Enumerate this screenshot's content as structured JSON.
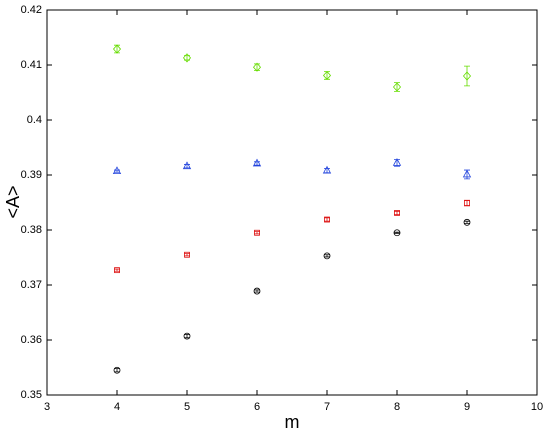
{
  "chart_data": {
    "type": "scatter",
    "x_label": "m",
    "y_label": "<A>",
    "x": [
      4,
      5,
      6,
      7,
      8,
      9
    ],
    "series": [
      {
        "color": "#66dd00",
        "marker": "diamond",
        "values": [
          0.4129,
          0.4113,
          0.4096,
          0.4081,
          0.406,
          0.408
        ],
        "errors": [
          0.0007,
          0.0004,
          0.0006,
          0.0007,
          0.0008,
          0.0018
        ]
      },
      {
        "color": "#2244dd",
        "marker": "triangle",
        "values": [
          0.3907,
          0.3916,
          0.3921,
          0.3908,
          0.3922,
          0.3901
        ],
        "errors": [
          0.0002,
          0.0003,
          0.0003,
          0.0004,
          0.0006,
          0.0008
        ]
      },
      {
        "color": "#dd1111",
        "marker": "square",
        "values": [
          0.3727,
          0.3755,
          0.3795,
          0.3819,
          0.3831,
          0.3849
        ],
        "errors": [
          0.0002,
          0.0002,
          0.0002,
          0.0003,
          0.0003,
          0.0005
        ]
      },
      {
        "color": "#000000",
        "marker": "circle",
        "values": [
          0.3545,
          0.3607,
          0.3689,
          0.3753,
          0.3795,
          0.3814
        ],
        "errors": [
          0.0003,
          0.0003,
          0.0002,
          0.0002,
          0.0001,
          0.0002
        ]
      }
    ],
    "xlim": [
      3,
      10
    ],
    "xticks": [
      3,
      4,
      5,
      6,
      7,
      8,
      9,
      10
    ],
    "ylim": [
      0.35,
      0.42
    ],
    "yticks": [
      0.35,
      0.36,
      0.37,
      0.38,
      0.39,
      0.4,
      0.41,
      0.42
    ],
    "grid": false
  }
}
